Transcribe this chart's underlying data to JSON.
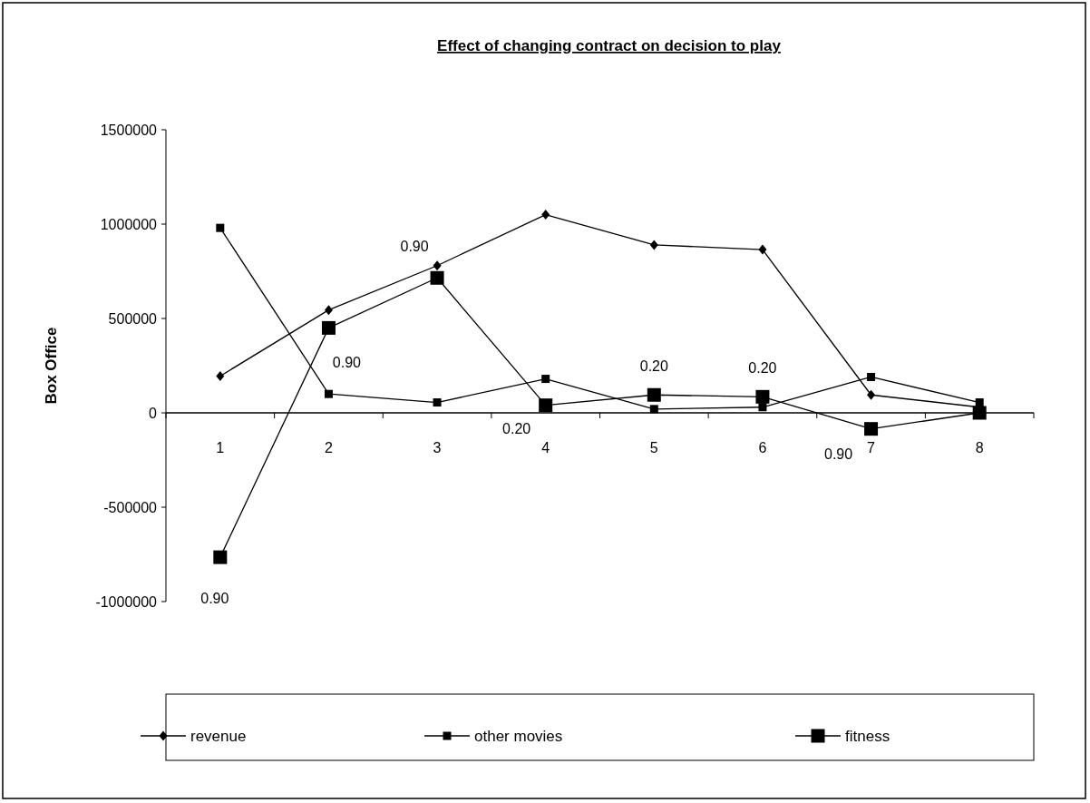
{
  "chart_data": {
    "type": "line",
    "title": "Effect of changing contract on decision to play",
    "ylabel": "Box Office",
    "categories": [
      "1",
      "2",
      "3",
      "4",
      "5",
      "6",
      "7",
      "8"
    ],
    "series": [
      {
        "name": "revenue",
        "color": "#000000",
        "marker": "diamond",
        "values": [
          195000,
          545000,
          780000,
          1050000,
          890000,
          865000,
          95000,
          30000
        ]
      },
      {
        "name": "other movies",
        "color": "#000000",
        "marker": "square",
        "values": [
          980000,
          100000,
          55000,
          180000,
          20000,
          30000,
          190000,
          55000
        ]
      },
      {
        "name": "fitness",
        "color": "#000000",
        "marker": "square",
        "values": [
          -765000,
          450000,
          715000,
          40000,
          95000,
          85000,
          -85000,
          0
        ]
      }
    ],
    "annotations": [
      {
        "text": "0.90",
        "x": "1",
        "y": -765000
      },
      {
        "text": "0.90",
        "x": "2",
        "y": 450000
      },
      {
        "text": "0.90",
        "x": "3",
        "y": 715000
      },
      {
        "text": "0.20",
        "x": "4",
        "y": 40000
      },
      {
        "text": "0.20",
        "x": "5",
        "y": 95000
      },
      {
        "text": "0.20",
        "x": "6",
        "y": 85000
      },
      {
        "text": "0.90",
        "x": "7",
        "y": -85000
      }
    ],
    "ylim": [
      -1000000,
      1500000
    ],
    "yticks": [
      -1000000,
      -500000,
      0,
      500000,
      1000000,
      1500000
    ],
    "grid": false,
    "legend": "bottom"
  }
}
